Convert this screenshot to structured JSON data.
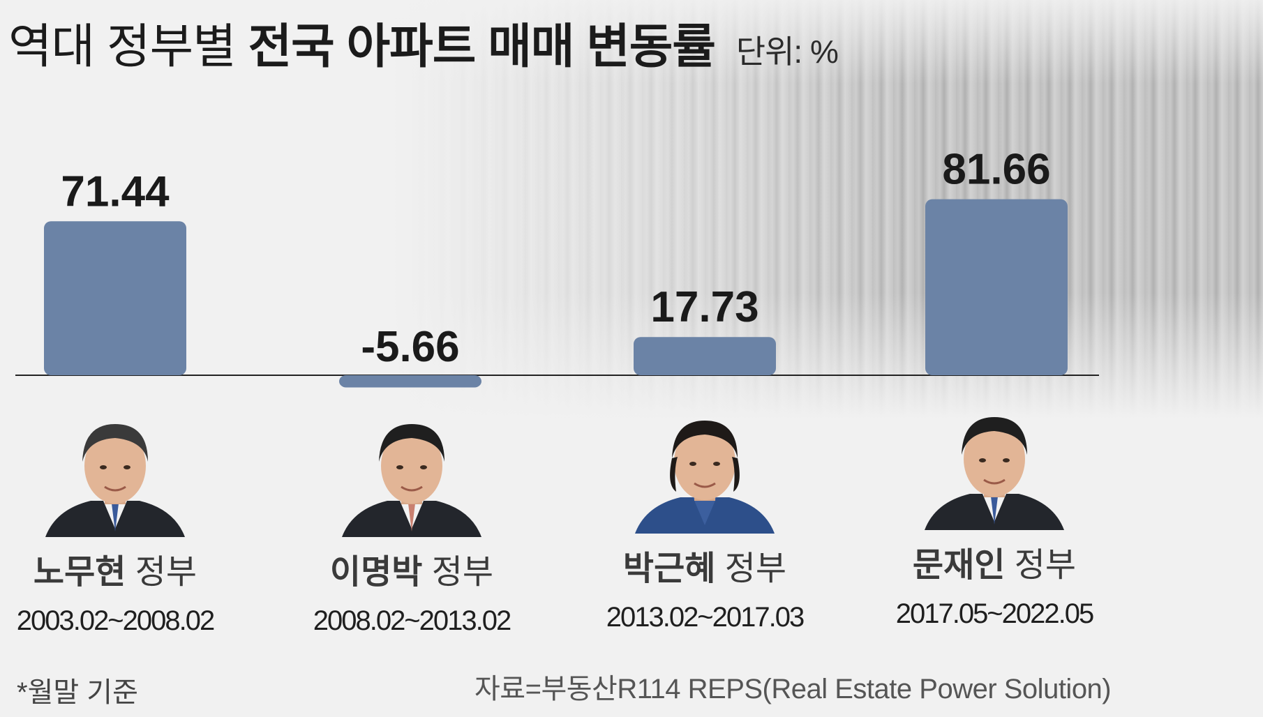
{
  "title": {
    "normal": "역대 정부별",
    "bold": "전국 아파트 매매 변동률",
    "unit": "단위: %"
  },
  "chart_data": {
    "type": "bar",
    "categories": [
      "노무현 정부",
      "이명박 정부",
      "박근혜 정부",
      "문재인 정부"
    ],
    "values": [
      71.44,
      -5.66,
      17.73,
      81.66
    ],
    "value_labels": [
      "71.44",
      "-5.66",
      "17.73",
      "81.66"
    ],
    "periods": [
      "2003.02~2008.02",
      "2008.02~2013.02",
      "2013.02~2017.03",
      "2017.05~2022.05"
    ],
    "bar_color": "#6b83a6",
    "grid": false,
    "legend": "none",
    "ylim": [
      -10,
      90
    ]
  },
  "governments": [
    {
      "name": "노무현",
      "suffix": "정부",
      "period": "2003.02~2008.02",
      "portrait": "man-portrait-icon"
    },
    {
      "name": "이명박",
      "suffix": "정부",
      "period": "2008.02~2013.02",
      "portrait": "man-portrait-icon"
    },
    {
      "name": "박근혜",
      "suffix": "정부",
      "period": "2013.02~2017.03",
      "portrait": "woman-portrait-icon"
    },
    {
      "name": "문재인",
      "suffix": "정부",
      "period": "2017.05~2022.05",
      "portrait": "man-portrait-icon"
    }
  ],
  "footnote": "*월말 기준",
  "source": "자료=부동산R114 REPS(Real Estate Power Solution)"
}
